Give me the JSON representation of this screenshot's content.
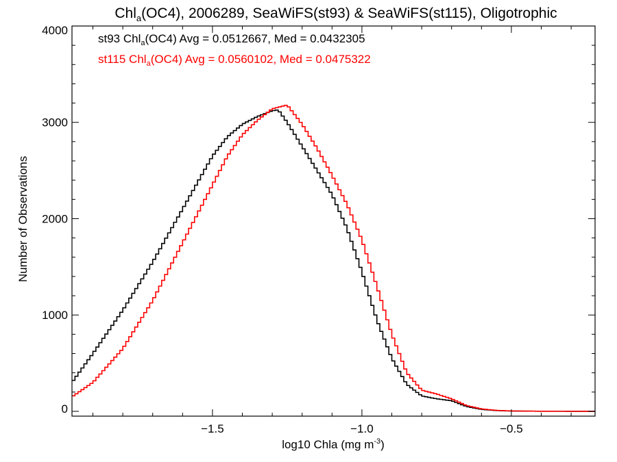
{
  "chart_data": {
    "type": "step-histogram",
    "title": {
      "prefix": "Chl",
      "sub": "a",
      "suffix": "(OC4), 2006289, SeaWiFS(st93) & SeaWiFS(st115), Oligotrophic"
    },
    "xlabel": {
      "text": "log10 Chla (mg m",
      "sup": "-3",
      "close": ")"
    },
    "ylabel": "Number of Observations",
    "xlim": [
      -1.97,
      -0.22
    ],
    "ylim": [
      -50,
      4000
    ],
    "x_ticks": [
      -1.5,
      -1.0,
      -0.5
    ],
    "x_tick_labels": [
      "−1.5",
      "−1.0",
      "−0.5"
    ],
    "y_ticks": [
      0,
      1000,
      2000,
      3000,
      4000
    ],
    "y_tick_labels": [
      "0",
      "1000",
      "2000",
      "3000",
      "4000"
    ],
    "bin_width": 0.01,
    "legend": [
      {
        "prefix": "st93 Chl",
        "sub": "a",
        "suffix": "(OC4) Avg = 0.0512667, Med = 0.0432305",
        "color": "#000000"
      },
      {
        "prefix": "st115 Chl",
        "sub": "a",
        "suffix": "(OC4) Avg = 0.0560102, Med = 0.0475322",
        "color": "#ff0000"
      }
    ],
    "series": [
      {
        "name": "st93",
        "color": "#000000",
        "points": [
          [
            -1.97,
            300
          ],
          [
            -1.9,
            600
          ],
          [
            -1.8,
            1050
          ],
          [
            -1.7,
            1550
          ],
          [
            -1.6,
            2100
          ],
          [
            -1.5,
            2650
          ],
          [
            -1.45,
            2850
          ],
          [
            -1.4,
            2980
          ],
          [
            -1.35,
            3060
          ],
          [
            -1.3,
            3120
          ],
          [
            -1.28,
            3130
          ],
          [
            -1.25,
            3000
          ],
          [
            -1.2,
            2750
          ],
          [
            -1.15,
            2500
          ],
          [
            -1.1,
            2250
          ],
          [
            -1.05,
            1900
          ],
          [
            -1.0,
            1450
          ],
          [
            -0.95,
            950
          ],
          [
            -0.9,
            550
          ],
          [
            -0.85,
            280
          ],
          [
            -0.8,
            160
          ],
          [
            -0.75,
            130
          ],
          [
            -0.7,
            110
          ],
          [
            -0.65,
            50
          ],
          [
            -0.6,
            20
          ],
          [
            -0.55,
            8
          ],
          [
            -0.5,
            3
          ],
          [
            -0.4,
            1
          ],
          [
            -0.22,
            0
          ]
        ]
      },
      {
        "name": "st115",
        "color": "#ff0000",
        "points": [
          [
            -1.97,
            150
          ],
          [
            -1.9,
            300
          ],
          [
            -1.8,
            650
          ],
          [
            -1.7,
            1150
          ],
          [
            -1.6,
            1750
          ],
          [
            -1.5,
            2350
          ],
          [
            -1.45,
            2650
          ],
          [
            -1.4,
            2870
          ],
          [
            -1.35,
            3020
          ],
          [
            -1.3,
            3140
          ],
          [
            -1.25,
            3180
          ],
          [
            -1.2,
            2980
          ],
          [
            -1.15,
            2730
          ],
          [
            -1.1,
            2450
          ],
          [
            -1.05,
            2150
          ],
          [
            -1.0,
            1780
          ],
          [
            -0.95,
            1300
          ],
          [
            -0.9,
            800
          ],
          [
            -0.85,
            400
          ],
          [
            -0.8,
            220
          ],
          [
            -0.75,
            180
          ],
          [
            -0.7,
            130
          ],
          [
            -0.65,
            60
          ],
          [
            -0.6,
            25
          ],
          [
            -0.55,
            10
          ],
          [
            -0.5,
            4
          ],
          [
            -0.4,
            1
          ],
          [
            -0.22,
            0
          ]
        ]
      }
    ]
  }
}
